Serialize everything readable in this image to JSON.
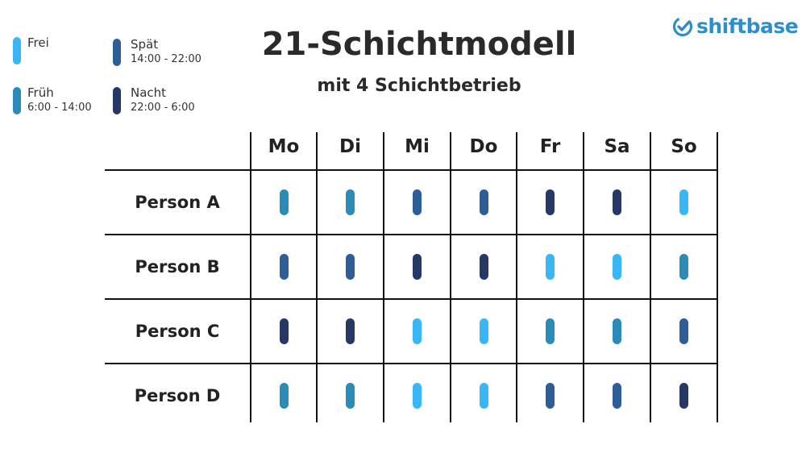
{
  "title": "21-Schichtmodell",
  "subtitle": "mit 4 Schichtbetrieb",
  "logo": {
    "text": "shiftbase",
    "icon": "check-circle-icon",
    "color": "#2f8ec9"
  },
  "legend": [
    {
      "key": "frei",
      "name": "Frei",
      "time": "",
      "color": "#38b6f5"
    },
    {
      "key": "frueh",
      "name": "Früh",
      "time": "6:00 - 14:00",
      "color": "#2a8bb8"
    },
    {
      "key": "spaet",
      "name": "Spät",
      "time": "14:00 - 22:00",
      "color": "#2d5e98"
    },
    {
      "key": "nacht",
      "name": "Nacht",
      "time": "22:00 - 6:00",
      "color": "#263966"
    }
  ],
  "days": [
    "Mo",
    "Di",
    "Mi",
    "Do",
    "Fr",
    "Sa",
    "So"
  ],
  "rows": [
    {
      "person": "Person A",
      "shifts": [
        "frueh",
        "frueh",
        "spaet",
        "spaet",
        "nacht",
        "nacht",
        "frei"
      ]
    },
    {
      "person": "Person B",
      "shifts": [
        "spaet",
        "spaet",
        "nacht",
        "nacht",
        "frei",
        "frei",
        "frueh"
      ]
    },
    {
      "person": "Person C",
      "shifts": [
        "nacht",
        "nacht",
        "frei",
        "frei",
        "frueh",
        "frueh",
        "spaet"
      ]
    },
    {
      "person": "Person D",
      "shifts": [
        "frueh",
        "frueh",
        "frei",
        "frei",
        "spaet",
        "spaet",
        "nacht"
      ]
    }
  ]
}
